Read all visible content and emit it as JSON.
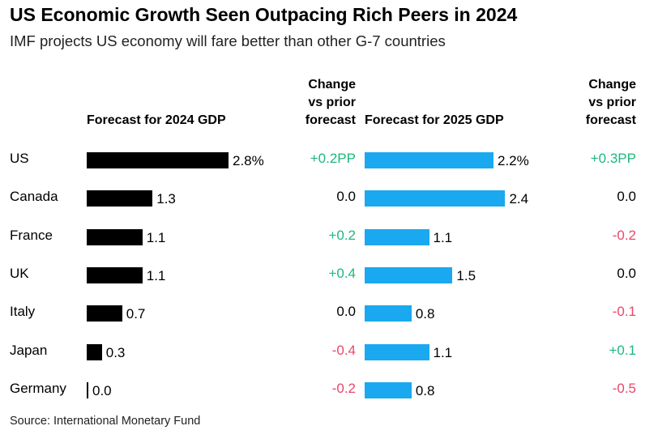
{
  "chart_data": {
    "type": "bar",
    "title": "US Economic Growth Seen Outpacing Rich Peers in 2024",
    "subtitle": "IMF projects US economy will fare better than other G-7 countries",
    "source": "Source: International Monetary Fund",
    "headers": {
      "forecast_2024": "Forecast for 2024 GDP",
      "change_2024": [
        "Change",
        "vs prior",
        "forecast"
      ],
      "forecast_2025": "Forecast for 2025 GDP",
      "change_2025": [
        "Change",
        "vs prior",
        "forecast"
      ]
    },
    "xlim": [
      0,
      3.0
    ],
    "categories": [
      "US",
      "Canada",
      "France",
      "UK",
      "Italy",
      "Japan",
      "Germany"
    ],
    "series": [
      {
        "name": "Forecast for 2024 GDP",
        "color": "#000000",
        "values": [
          2.8,
          1.3,
          1.1,
          1.1,
          0.7,
          0.3,
          0.0
        ],
        "labels": [
          "2.8%",
          "1.3",
          "1.1",
          "1.1",
          "0.7",
          "0.3",
          "0.0"
        ],
        "changes": [
          0.2,
          0.0,
          0.2,
          0.4,
          0.0,
          -0.4,
          -0.2
        ],
        "change_labels": [
          "+0.2PP",
          "0.0",
          "+0.2",
          "+0.4",
          "0.0",
          "-0.4",
          "-0.2"
        ]
      },
      {
        "name": "Forecast for 2025 GDP",
        "color": "#1aa9f0",
        "values": [
          2.2,
          2.4,
          1.1,
          1.5,
          0.8,
          1.1,
          0.8
        ],
        "labels": [
          "2.2%",
          "2.4",
          "1.1",
          "1.5",
          "0.8",
          "1.1",
          "0.8"
        ],
        "changes": [
          0.3,
          0.0,
          -0.2,
          0.0,
          -0.1,
          0.1,
          -0.5
        ],
        "change_labels": [
          "+0.3PP",
          "0.0",
          "-0.2",
          "0.0",
          "-0.1",
          "+0.1",
          "-0.5"
        ]
      }
    ],
    "colors": {
      "positive": "#1db87e",
      "negative": "#e8476c",
      "neutral": "#000000"
    }
  }
}
